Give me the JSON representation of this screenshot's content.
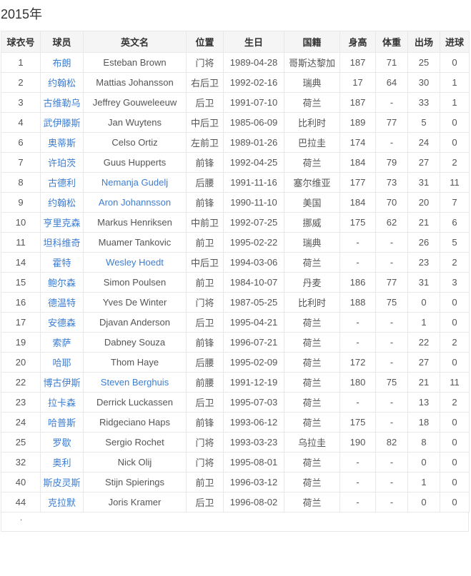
{
  "page": {
    "title": "2015年"
  },
  "colors": {
    "link": "#3d7dd2",
    "header_bg": "#f5f5f5",
    "border": "#e8e8e8",
    "text": "#555555",
    "title_text": "#333333"
  },
  "table": {
    "headers": [
      "球衣号",
      "球员",
      "英文名",
      "位置",
      "生日",
      "国籍",
      "身高",
      "体重",
      "出场",
      "进球"
    ],
    "footer_dot": ".",
    "rows": [
      {
        "number": "1",
        "name": "布朗",
        "en_name": "Esteban Brown",
        "en_link": false,
        "position": "门将",
        "birthday": "1989-04-28",
        "nationality": "哥斯达黎加",
        "height": "187",
        "weight": "71",
        "apps": "25",
        "goals": "0"
      },
      {
        "number": "2",
        "name": "约翰松",
        "en_name": "Mattias Johansson",
        "en_link": false,
        "position": "右后卫",
        "birthday": "1992-02-16",
        "nationality": "瑞典",
        "height": "17",
        "weight": "64",
        "apps": "30",
        "goals": "1"
      },
      {
        "number": "3",
        "name": "古维勒乌",
        "en_name": "Jeffrey Gouweleeuw",
        "en_link": false,
        "position": "后卫",
        "birthday": "1991-07-10",
        "nationality": "荷兰",
        "height": "187",
        "weight": "-",
        "apps": "33",
        "goals": "1"
      },
      {
        "number": "4",
        "name": "武伊滕斯",
        "en_name": "Jan Wuytens",
        "en_link": false,
        "position": "中后卫",
        "birthday": "1985-06-09",
        "nationality": "比利时",
        "height": "189",
        "weight": "77",
        "apps": "5",
        "goals": "0"
      },
      {
        "number": "6",
        "name": "奥蒂斯",
        "en_name": "Celso Ortiz",
        "en_link": false,
        "position": "左前卫",
        "birthday": "1989-01-26",
        "nationality": "巴拉圭",
        "height": "174",
        "weight": "-",
        "apps": "24",
        "goals": "0"
      },
      {
        "number": "7",
        "name": "许珀茨",
        "en_name": "Guus Hupperts",
        "en_link": false,
        "position": "前锋",
        "birthday": "1992-04-25",
        "nationality": "荷兰",
        "height": "184",
        "weight": "79",
        "apps": "27",
        "goals": "2"
      },
      {
        "number": "8",
        "name": "古德利",
        "en_name": "Nemanja Gudelj",
        "en_link": true,
        "position": "后腰",
        "birthday": "1991-11-16",
        "nationality": "塞尔维亚",
        "height": "177",
        "weight": "73",
        "apps": "31",
        "goals": "11"
      },
      {
        "number": "9",
        "name": "约翰松",
        "en_name": "Aron Johannsson",
        "en_link": true,
        "position": "前锋",
        "birthday": "1990-11-10",
        "nationality": "美国",
        "height": "184",
        "weight": "70",
        "apps": "20",
        "goals": "7"
      },
      {
        "number": "10",
        "name": "亨里克森",
        "en_name": "Markus Henriksen",
        "en_link": false,
        "position": "中前卫",
        "birthday": "1992-07-25",
        "nationality": "挪威",
        "height": "175",
        "weight": "62",
        "apps": "21",
        "goals": "6"
      },
      {
        "number": "11",
        "name": "坦科维奇",
        "en_name": "Muamer Tankovic",
        "en_link": false,
        "position": "前卫",
        "birthday": "1995-02-22",
        "nationality": "瑞典",
        "height": "-",
        "weight": "-",
        "apps": "26",
        "goals": "5"
      },
      {
        "number": "14",
        "name": "霍特",
        "en_name": "Wesley Hoedt",
        "en_link": true,
        "position": "中后卫",
        "birthday": "1994-03-06",
        "nationality": "荷兰",
        "height": "-",
        "weight": "-",
        "apps": "23",
        "goals": "2"
      },
      {
        "number": "15",
        "name": "鲍尔森",
        "en_name": "Simon Poulsen",
        "en_link": false,
        "position": "前卫",
        "birthday": "1984-10-07",
        "nationality": "丹麦",
        "height": "186",
        "weight": "77",
        "apps": "31",
        "goals": "3"
      },
      {
        "number": "16",
        "name": "德温特",
        "en_name": "Yves De Winter",
        "en_link": false,
        "position": "门将",
        "birthday": "1987-05-25",
        "nationality": "比利时",
        "height": "188",
        "weight": "75",
        "apps": "0",
        "goals": "0"
      },
      {
        "number": "17",
        "name": "安德森",
        "en_name": "Djavan Anderson",
        "en_link": false,
        "position": "后卫",
        "birthday": "1995-04-21",
        "nationality": "荷兰",
        "height": "-",
        "weight": "-",
        "apps": "1",
        "goals": "0"
      },
      {
        "number": "19",
        "name": "索萨",
        "en_name": "Dabney Souza",
        "en_link": false,
        "position": "前锋",
        "birthday": "1996-07-21",
        "nationality": "荷兰",
        "height": "-",
        "weight": "-",
        "apps": "22",
        "goals": "2"
      },
      {
        "number": "20",
        "name": "哈耶",
        "en_name": "Thom Haye",
        "en_link": false,
        "position": "后腰",
        "birthday": "1995-02-09",
        "nationality": "荷兰",
        "height": "172",
        "weight": "-",
        "apps": "27",
        "goals": "0"
      },
      {
        "number": "22",
        "name": "博古伊斯",
        "en_name": "Steven Berghuis",
        "en_link": true,
        "position": "前腰",
        "birthday": "1991-12-19",
        "nationality": "荷兰",
        "height": "180",
        "weight": "75",
        "apps": "21",
        "goals": "11"
      },
      {
        "number": "23",
        "name": "拉卡森",
        "en_name": "Derrick Luckassen",
        "en_link": false,
        "position": "后卫",
        "birthday": "1995-07-03",
        "nationality": "荷兰",
        "height": "-",
        "weight": "-",
        "apps": "13",
        "goals": "2"
      },
      {
        "number": "24",
        "name": "哈普斯",
        "en_name": "Ridgeciano Haps",
        "en_link": false,
        "position": "前锋",
        "birthday": "1993-06-12",
        "nationality": "荷兰",
        "height": "175",
        "weight": "-",
        "apps": "18",
        "goals": "0"
      },
      {
        "number": "25",
        "name": "罗歇",
        "en_name": "Sergio Rochet",
        "en_link": false,
        "position": "门将",
        "birthday": "1993-03-23",
        "nationality": "乌拉圭",
        "height": "190",
        "weight": "82",
        "apps": "8",
        "goals": "0"
      },
      {
        "number": "32",
        "name": "奥利",
        "en_name": "Nick Olij",
        "en_link": false,
        "position": "门将",
        "birthday": "1995-08-01",
        "nationality": "荷兰",
        "height": "-",
        "weight": "-",
        "apps": "0",
        "goals": "0"
      },
      {
        "number": "40",
        "name": "斯皮灵斯",
        "en_name": "Stijn Spierings",
        "en_link": false,
        "position": "前卫",
        "birthday": "1996-03-12",
        "nationality": "荷兰",
        "height": "-",
        "weight": "-",
        "apps": "1",
        "goals": "0"
      },
      {
        "number": "44",
        "name": "克拉默",
        "en_name": "Joris Kramer",
        "en_link": false,
        "position": "后卫",
        "birthday": "1996-08-02",
        "nationality": "荷兰",
        "height": "-",
        "weight": "-",
        "apps": "0",
        "goals": "0"
      }
    ]
  }
}
